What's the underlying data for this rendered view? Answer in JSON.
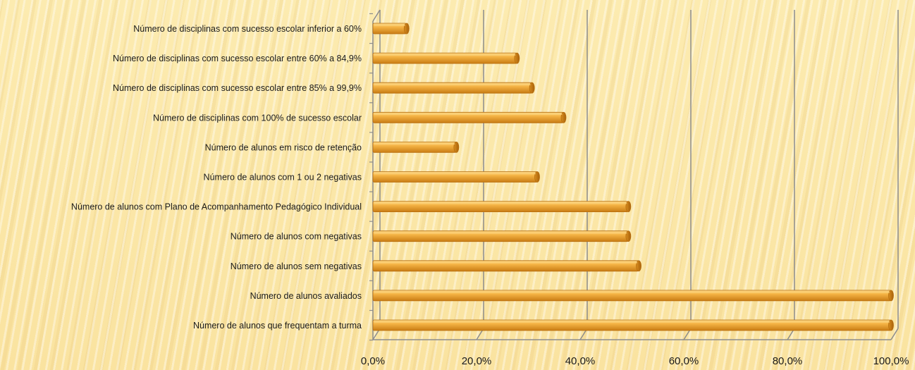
{
  "chart_data": {
    "type": "bar",
    "orientation": "horizontal",
    "categories": [
      "Número de disciplinas com sucesso escolar inferior a 60%",
      "Número de disciplinas com sucesso escolar entre 60% a 84,9%",
      "Número de disciplinas com sucesso escolar entre 85% a 99,9%",
      "Número de disciplinas com 100% de sucesso escolar",
      "Número de alunos em risco de retenção",
      "Número de alunos com 1 ou 2 negativas",
      "Número de alunos com Plano de Acompanhamento Pedagógico Individual",
      "Número de alunos com negativas",
      "Número de alunos sem negativas",
      "Número de alunos avaliados",
      "Número de alunos que frequentam a turma"
    ],
    "values": [
      6.5,
      27.8,
      30.7,
      36.8,
      16.1,
      31.7,
      49.3,
      49.3,
      51.3,
      100,
      100
    ],
    "xlim": [
      0,
      100
    ],
    "tick_labels": [
      "0,0%",
      "20,0%",
      "40,0%",
      "60,0%",
      "80,0%",
      "100,0%"
    ],
    "grid": true,
    "colors": {
      "bar": "#f0a830",
      "bar_light": "#fcd37a",
      "bar_dark": "#b76e0e",
      "grid": "#8c8c8c"
    }
  }
}
